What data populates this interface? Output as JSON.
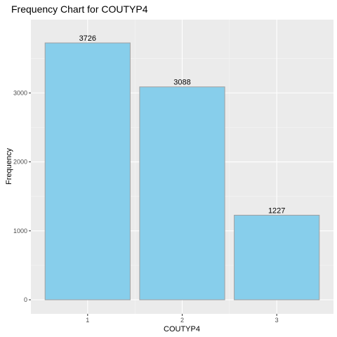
{
  "chart_data": {
    "type": "bar",
    "title": "Frequency Chart for COUTYP4",
    "xlabel": "COUTYP4",
    "ylabel": "Frequency",
    "categories": [
      "1",
      "2",
      "3"
    ],
    "values": [
      3726,
      3088,
      1227
    ],
    "data_labels": [
      "3726",
      "3088",
      "1227"
    ],
    "y_ticks": [
      0,
      1000,
      2000,
      3000
    ],
    "y_tick_labels": [
      "0",
      "1000",
      "2000",
      "3000"
    ],
    "ylim": [
      0,
      3900
    ],
    "grid": true,
    "legend": "none",
    "colors": {
      "panel_background": "#ebebeb",
      "grid_major": "#ffffff",
      "grid_minor": "#f5f5f5",
      "bar_fill": "#87ceeb",
      "bar_outline": "#a0a0a0",
      "tick": "#333333"
    }
  }
}
